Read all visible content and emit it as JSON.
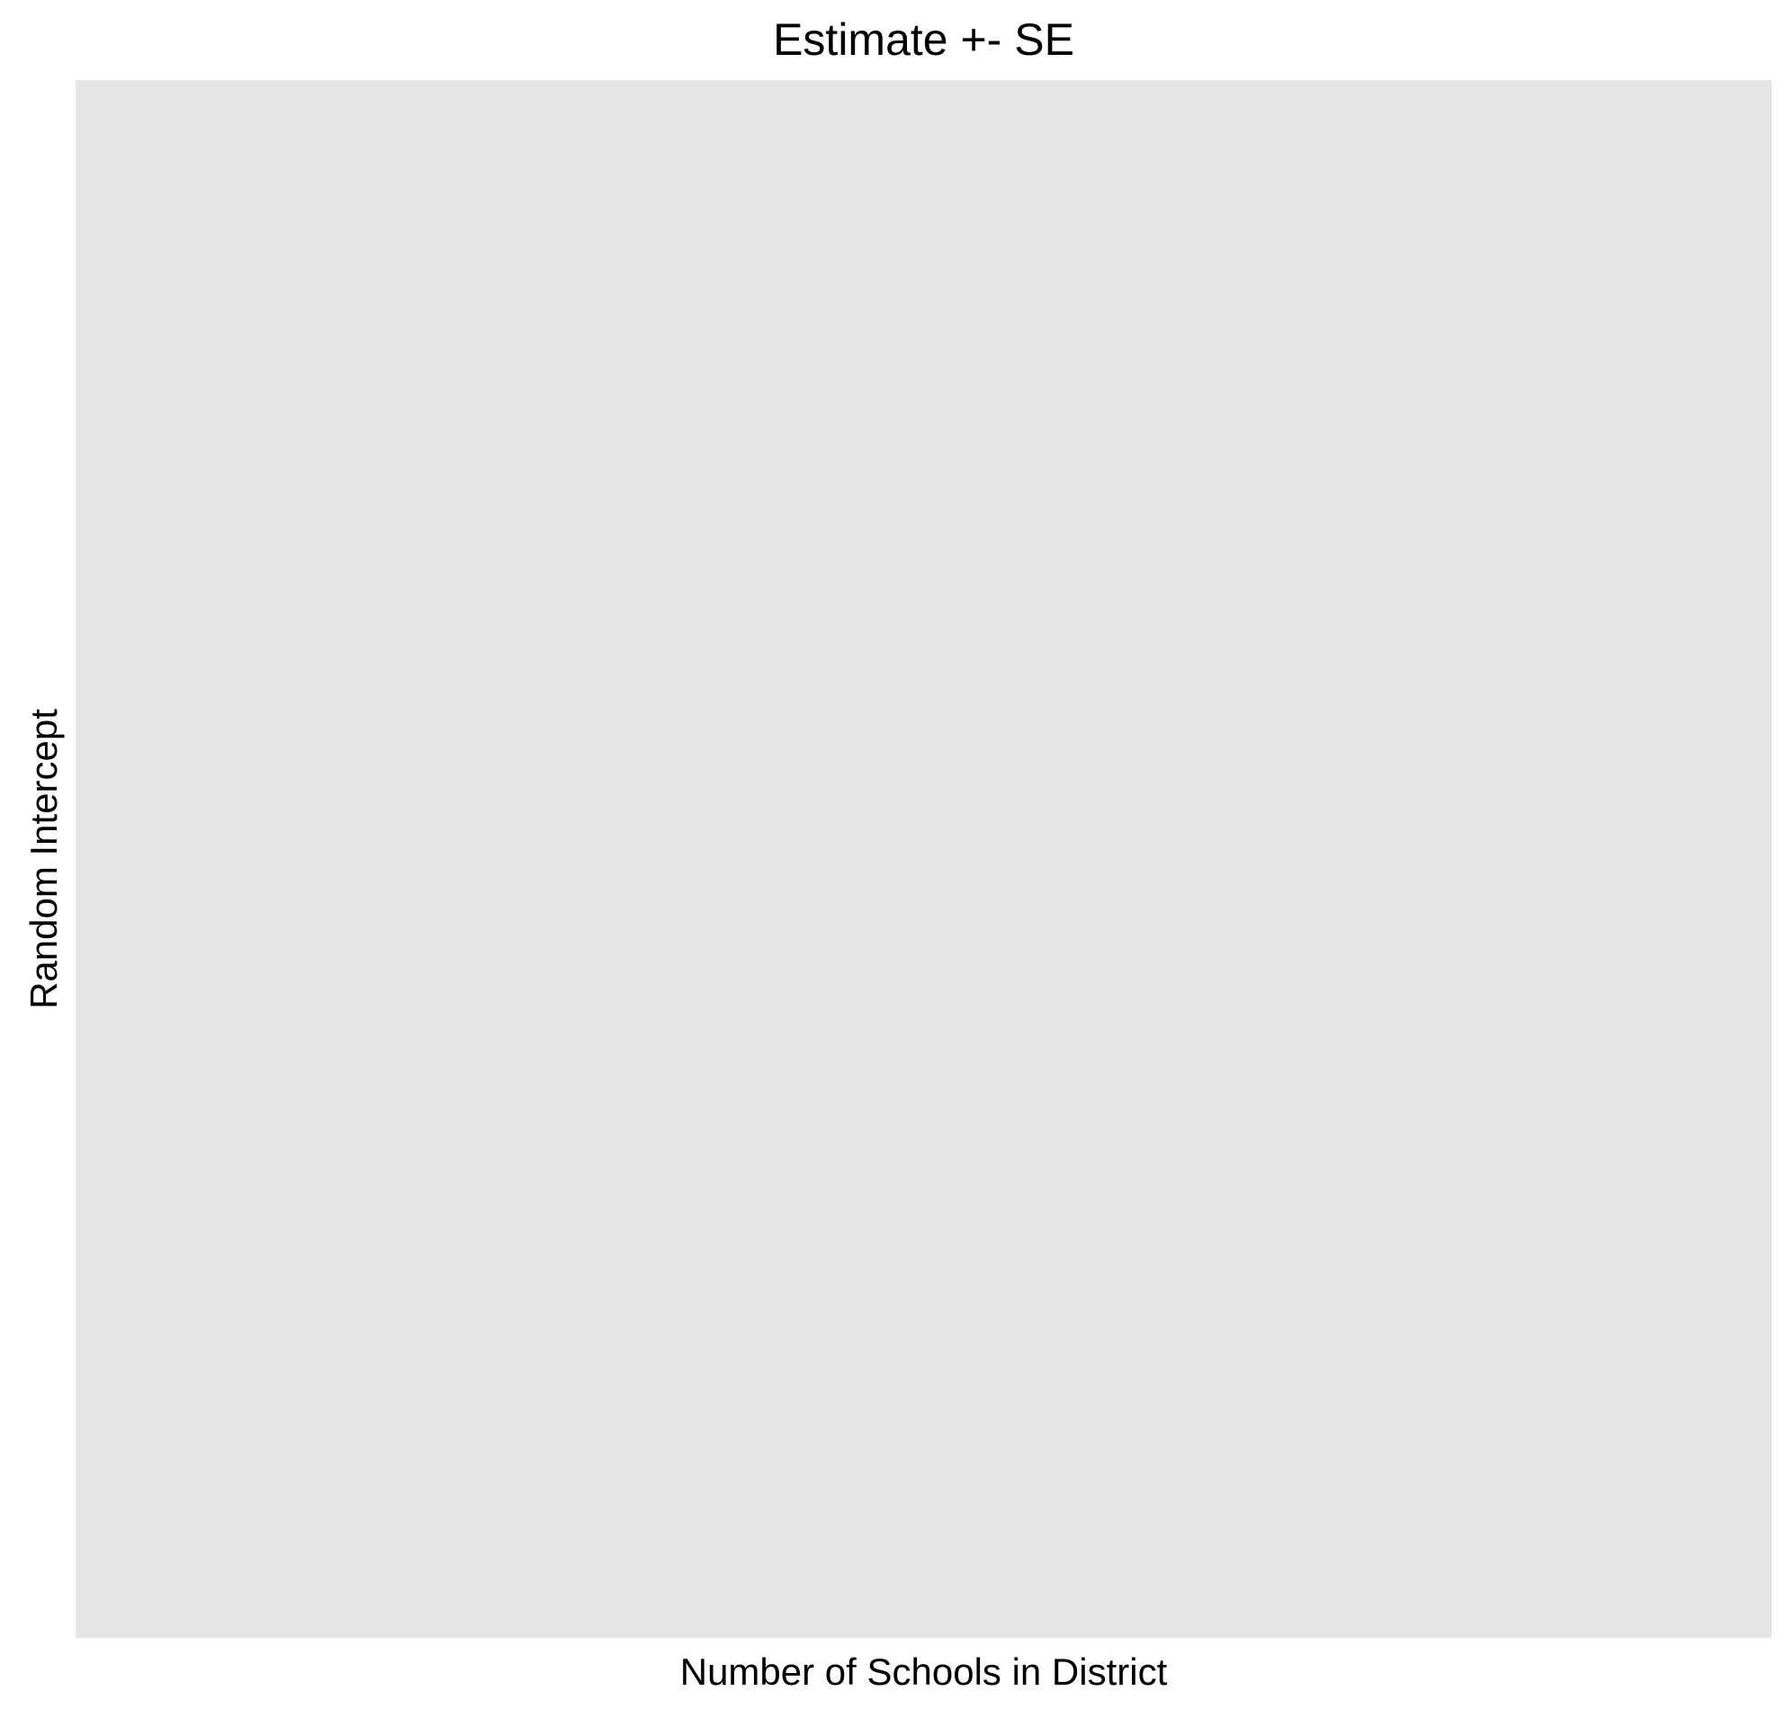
{
  "chart_data": {
    "type": "scatter",
    "title": "Estimate +- SE",
    "xlabel": "Number of Schools in District",
    "ylabel": "Random Intercept",
    "series": [],
    "panel_background": "#e5e5e5",
    "grid": false,
    "legend": "none"
  }
}
